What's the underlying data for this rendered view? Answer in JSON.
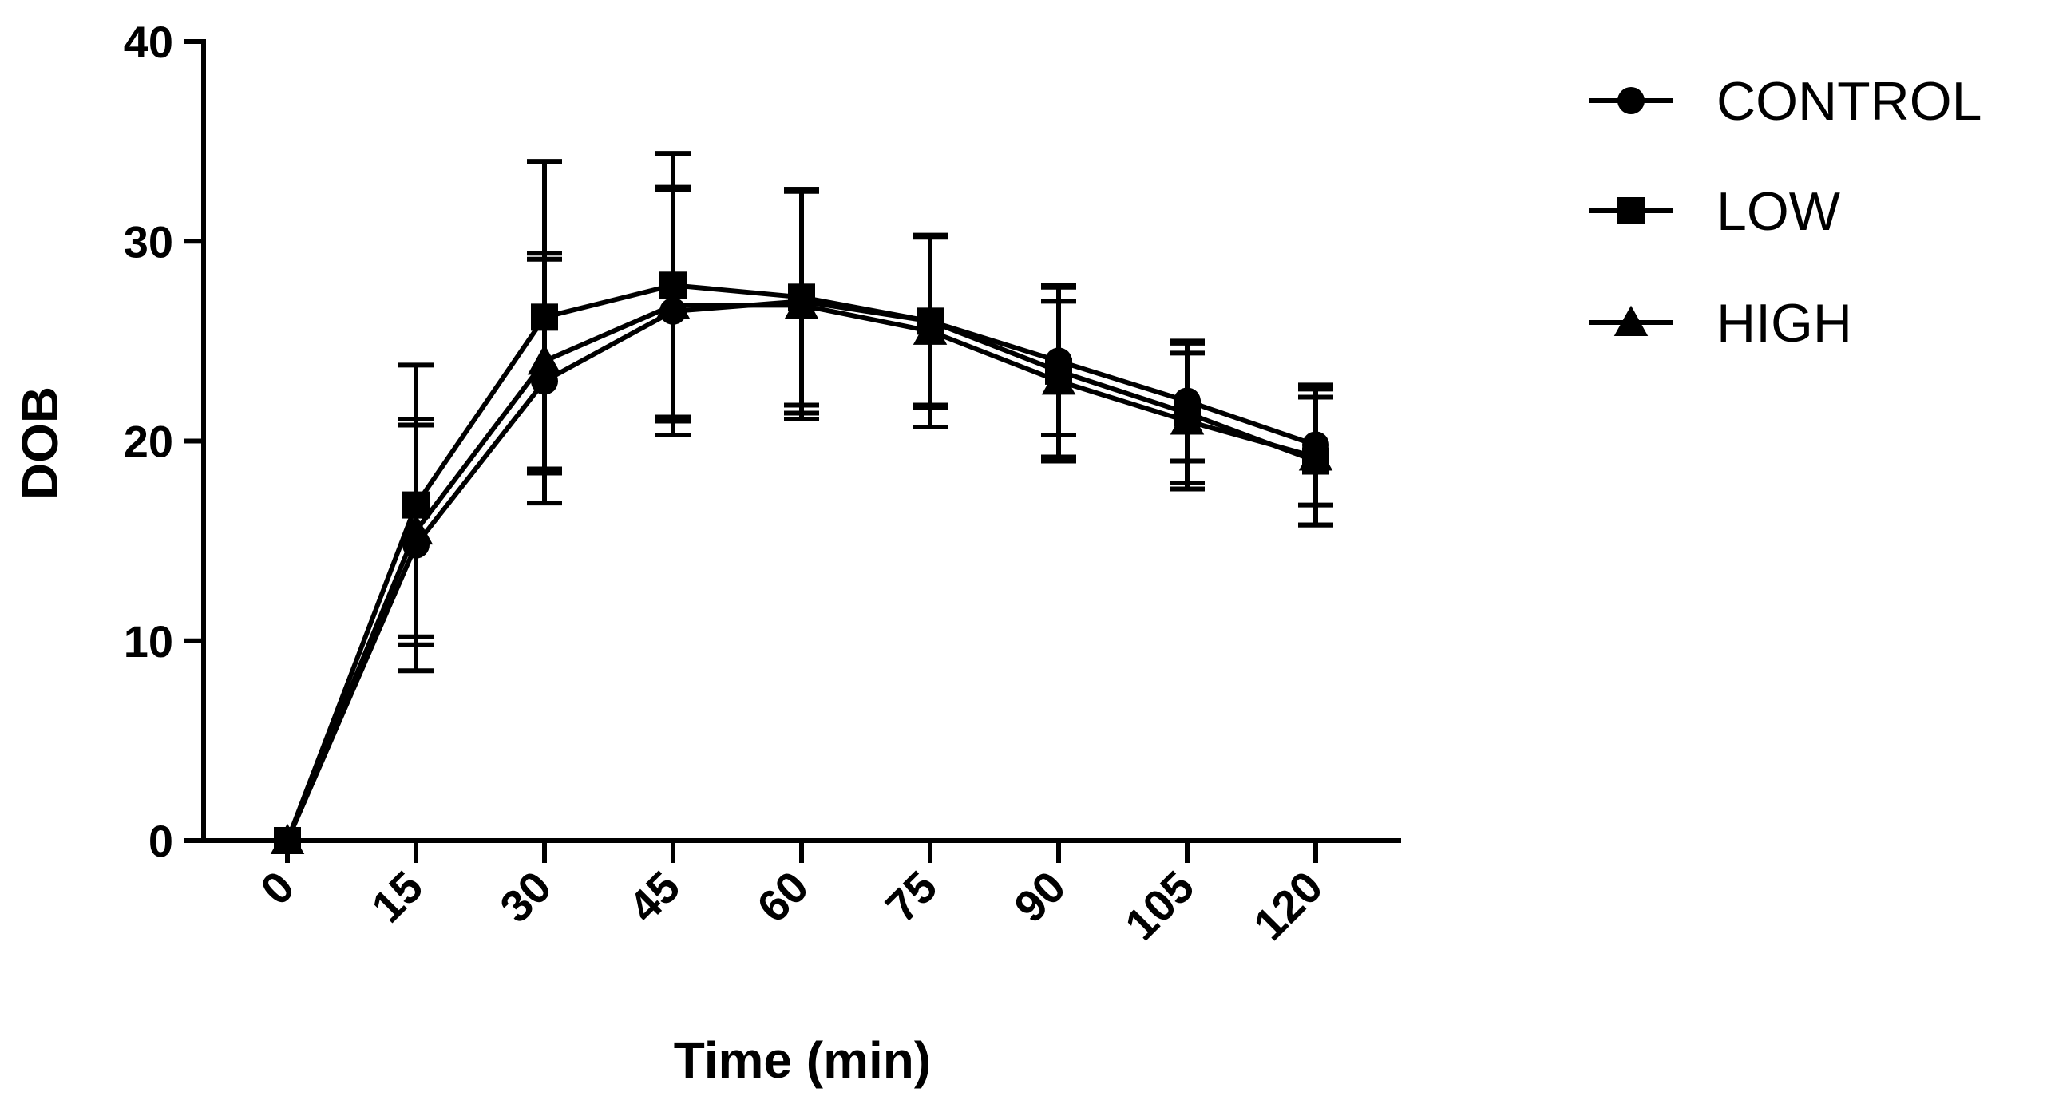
{
  "chart_data": {
    "type": "line",
    "title": "",
    "xlabel": "Time (min)",
    "ylabel": "DOB",
    "x": [
      0,
      15,
      30,
      45,
      60,
      75,
      90,
      105,
      120
    ],
    "x_tick_labels": [
      "0",
      "15",
      "30",
      "45",
      "60",
      "75",
      "90",
      "105",
      "120"
    ],
    "ylim": [
      0,
      40
    ],
    "y_ticks": [
      0,
      10,
      20,
      30,
      40
    ],
    "y_tick_labels": [
      "0",
      "10",
      "20",
      "30",
      "40"
    ],
    "grid": false,
    "legend_position": "top-right",
    "series": [
      {
        "name": "CONTROL",
        "marker": "circle",
        "values": [
          0,
          14.8,
          23.0,
          26.5,
          27.0,
          26.0,
          24.0,
          22.0,
          19.8
        ],
        "errors": [
          0,
          6.3,
          6.1,
          6.2,
          5.6,
          4.2,
          3.7,
          3.0,
          3.0
        ]
      },
      {
        "name": "LOW",
        "marker": "square",
        "values": [
          0,
          16.8,
          26.2,
          27.8,
          27.2,
          26.0,
          23.5,
          21.4,
          19.0
        ],
        "errors": [
          0,
          7.0,
          7.8,
          6.6,
          5.4,
          4.3,
          4.3,
          3.5,
          3.2
        ]
      },
      {
        "name": "HIGH",
        "marker": "triangle",
        "values": [
          0,
          15.5,
          24.0,
          26.8,
          26.8,
          25.5,
          23.0,
          21.0,
          19.2
        ],
        "errors": [
          0,
          5.3,
          5.4,
          5.8,
          5.7,
          4.8,
          4.0,
          3.4,
          3.4
        ]
      }
    ]
  }
}
